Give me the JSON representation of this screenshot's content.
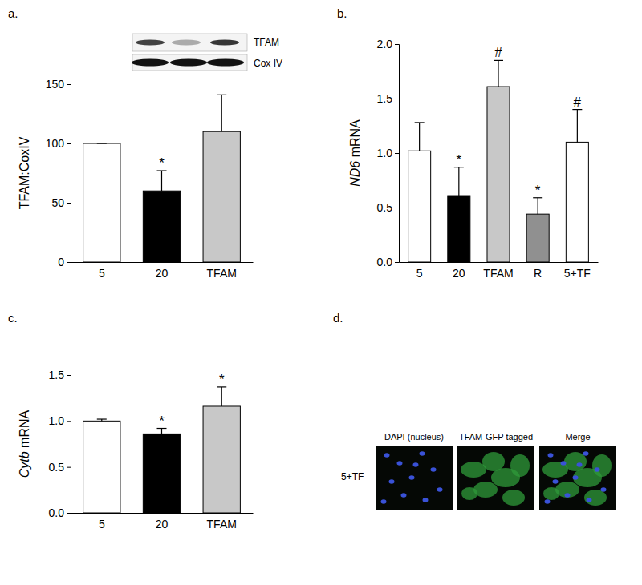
{
  "chart_data": [
    {
      "type": "bar",
      "title": "a.",
      "ylabel": "TFAM:CoxIV",
      "categories": [
        "5",
        "20",
        "TFAM"
      ],
      "values": [
        100,
        60,
        110
      ],
      "errors": [
        0,
        17,
        31
      ],
      "colors": [
        "#ffffff",
        "#000000",
        "#c8c8c8"
      ],
      "ylim": [
        0,
        150
      ],
      "yticks": [
        0,
        50,
        100,
        150
      ],
      "annotations": [
        {
          "category": "20",
          "text": "*"
        }
      ],
      "inset": {
        "labels": [
          "TFAM",
          "Cox IV"
        ]
      }
    },
    {
      "type": "bar",
      "title": "b.",
      "ylabel": "ND6 mRNA",
      "categories": [
        "5",
        "20",
        "TFAM",
        "R",
        "5+TF"
      ],
      "values": [
        1.02,
        0.61,
        1.61,
        0.44,
        1.1
      ],
      "errors": [
        0.26,
        0.26,
        0.24,
        0.15,
        0.3
      ],
      "colors": [
        "#ffffff",
        "#000000",
        "#c8c8c8",
        "#909090",
        "#ffffff"
      ],
      "ylim": [
        0,
        2
      ],
      "yticks": [
        {
          "value": 0,
          "label": "0.0"
        },
        {
          "value": 0.5,
          "label": "0.5"
        },
        {
          "value": 1,
          "label": "1.0"
        },
        {
          "value": 1.5,
          "label": "1.5"
        },
        {
          "value": 2,
          "label": "2.0"
        }
      ],
      "annotations": [
        {
          "category": "20",
          "text": "*"
        },
        {
          "category": "TFAM",
          "text": "#"
        },
        {
          "category": "R",
          "text": "*"
        },
        {
          "category": "5+TF",
          "text": "#"
        }
      ]
    },
    {
      "type": "bar",
      "title": "c.",
      "ylabel": "Cytb mRNA",
      "categories": [
        "5",
        "20",
        "TFAM"
      ],
      "values": [
        1.0,
        0.86,
        1.16
      ],
      "errors": [
        0.02,
        0.06,
        0.21
      ],
      "colors": [
        "#ffffff",
        "#000000",
        "#c8c8c8"
      ],
      "ylim": [
        0,
        1.5
      ],
      "yticks": [
        {
          "value": 0,
          "label": "0.0"
        },
        {
          "value": 0.5,
          "label": "0.5"
        },
        {
          "value": 1,
          "label": "1.0"
        },
        {
          "value": 1.5,
          "label": "1.5"
        }
      ],
      "annotations": [
        {
          "category": "20",
          "text": "*"
        },
        {
          "category": "TFAM",
          "text": "*"
        }
      ]
    }
  ],
  "image_panel": {
    "title": "d.",
    "row_label": "5+TF",
    "columns": [
      "DAPI (nucleus)",
      "TFAM-GFP tagged",
      "Merge"
    ]
  }
}
